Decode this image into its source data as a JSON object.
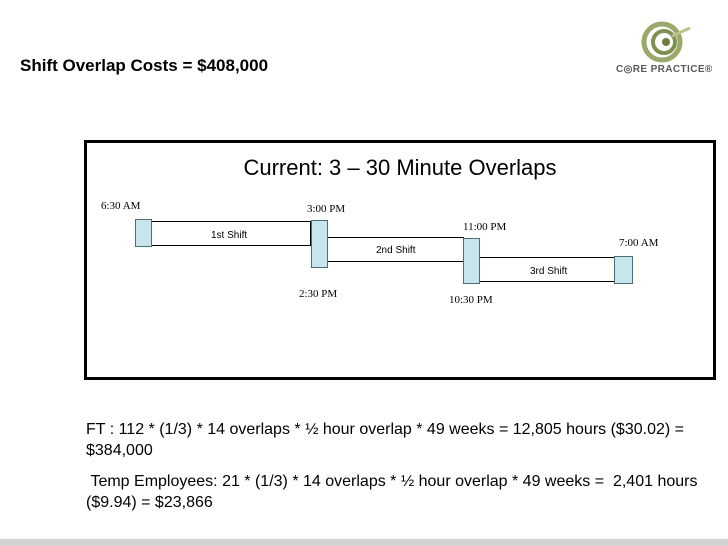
{
  "slide": {
    "title": "Shift Overlap Costs = $408,000",
    "logo_text": "C◎RE PRACTICE®"
  },
  "diagram": {
    "title": "Current: 3 – 30 Minute Overlaps",
    "times": {
      "t630am": "6:30 AM",
      "t300pm": "3:00 PM",
      "t230pm": "2:30 PM",
      "t1100pm": "11:00 PM",
      "t1030pm": "10:30 PM",
      "t700am": "7:00 AM"
    },
    "shifts": {
      "first": "1st Shift",
      "second": "2nd Shift",
      "third": "3rd Shift"
    }
  },
  "calc": {
    "ft_line": "FT : 112 * (1/3) * 14 overlaps * ½ hour overlap * 49 weeks =  12,805 hours ($30.02) = $384,000",
    "temp_line": " Temp Employees: 21 * (1/3) * 14 overlaps * ½ hour overlap * 49 weeks =  2,401 hours ($9.94) = $23,866"
  }
}
